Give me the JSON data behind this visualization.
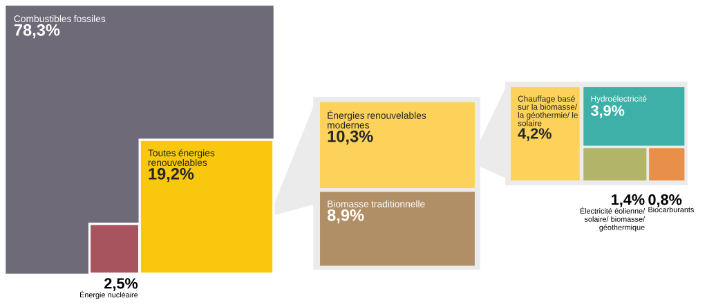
{
  "chart_data": {
    "type": "other",
    "categories": [
      "Combustibles fossiles",
      "Énergie nucléaire",
      "Toutes énergies renouvelables",
      "Énergies renouvelables modernes",
      "Biomasse traditionnelle",
      "Chauffage basé sur la biomasse/ la géothermie/ le solaire",
      "Hydroélectricité",
      "Électricité éolienne/ solaire/ biomasse/ géothermique",
      "Biocarburants"
    ],
    "values": [
      78.3,
      2.5,
      19.2,
      10.3,
      8.9,
      4.2,
      3.9,
      1.4,
      0.8
    ],
    "value_labels": [
      "78,3%",
      "2,5%",
      "19,2%",
      "10,3%",
      "8,9%",
      "4,2%",
      "3,9%",
      "1,4%",
      "0,8%"
    ],
    "colors": [
      "#6e6a78",
      "#a8545e",
      "#f9c80e",
      "#fcd25a",
      "#b08f66",
      "#fcd25a",
      "#3fb0a8",
      "#b2b46a",
      "#e8904a"
    ]
  }
}
